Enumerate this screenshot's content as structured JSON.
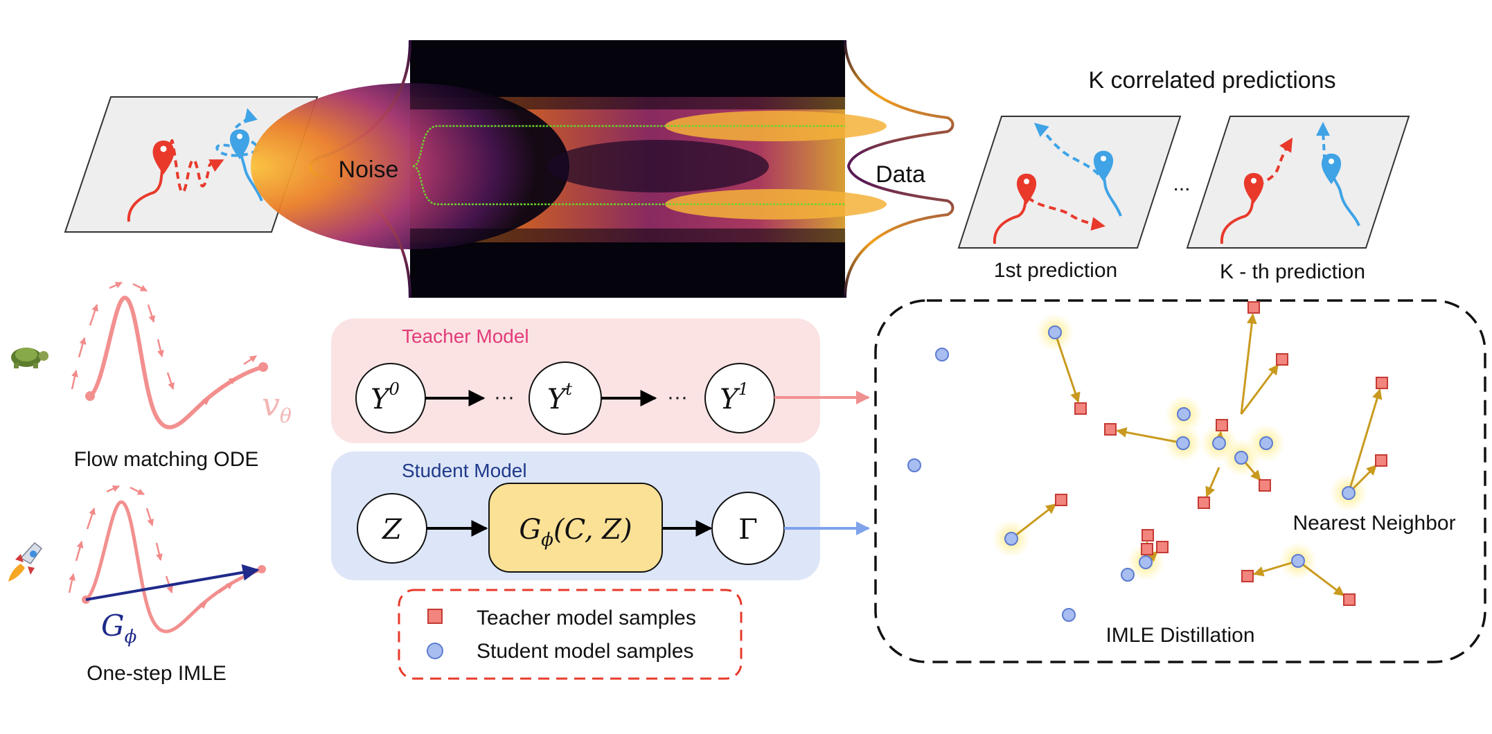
{
  "top_left_panel": {},
  "density": {
    "noise_label": "Noise",
    "data_label": "Data"
  },
  "predictions": {
    "title": "K correlated predictions",
    "first_label": "1st prediction",
    "kth_label": "K - th prediction",
    "ellipsis": "..."
  },
  "left_column": {
    "flow_label": "Flow matching ODE",
    "flow_symbol": "v",
    "flow_symbol_sub": "θ",
    "imle_label": "One-step IMLE",
    "imle_symbol": "G",
    "imle_symbol_sub": "ϕ",
    "turtle_icon": "turtle-icon",
    "rocket_icon": "rocket-icon"
  },
  "teacher": {
    "title": "Teacher Model",
    "node1_base": "Y",
    "node1_sup": "0",
    "node2_base": "Y",
    "node2_sup": "t",
    "node3_base": "Y",
    "node3_sup": "1",
    "dots": "···"
  },
  "student": {
    "title": "Student Model",
    "node_z": "Z",
    "generator": "G",
    "generator_sub": "ϕ",
    "generator_args": "(C, Z)",
    "node_gamma": "Γ"
  },
  "legend": {
    "teacher_samples": "Teacher model samples",
    "student_samples": "Student model samples"
  },
  "imle_panel": {
    "title": "IMLE Distillation",
    "nearest_neighbor": "Nearest Neighbor"
  },
  "colors": {
    "teacher_bg": "#fbe3e3",
    "student_bg": "#dde6f8",
    "generator_fill": "#fbe196",
    "teacher_title": "#e23b7a",
    "student_title": "#1f3a8a",
    "red_path": "#e8392b",
    "blue_path": "#3fa3e6",
    "arrow_gold": "#c99a1f",
    "square_fill": "#f2857e",
    "circle_fill": "#a8bdf0",
    "legend_border": "#e8392b"
  }
}
